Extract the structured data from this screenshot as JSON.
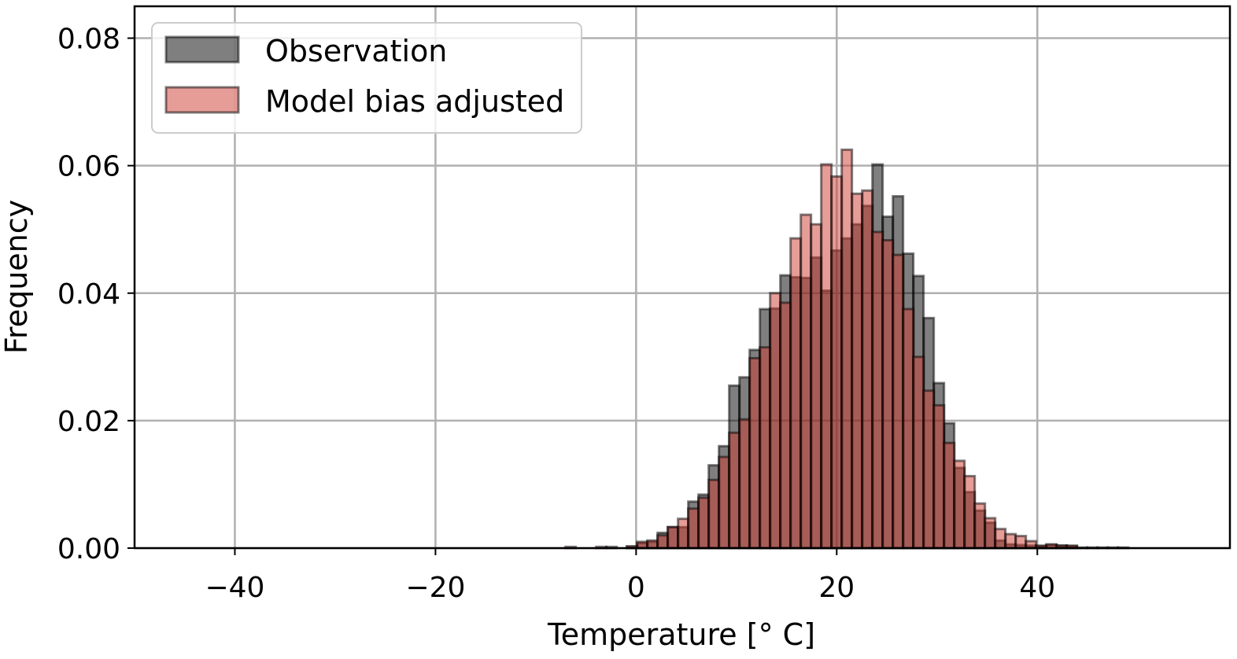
{
  "chart_data": {
    "type": "bar",
    "subtype": "overlapping-histogram",
    "title": "",
    "xlabel": "Temperature [° C]",
    "ylabel": "Frequency",
    "xlim": [
      -50,
      59.2
    ],
    "ylim": [
      0,
      0.085
    ],
    "xticks": [
      -40,
      -20,
      0,
      20,
      40
    ],
    "xtick_labels": [
      "−40",
      "−20",
      "0",
      "20",
      "40"
    ],
    "yticks": [
      0,
      0.02,
      0.04,
      0.06,
      0.08
    ],
    "ytick_labels": [
      "0.00",
      "0.02",
      "0.04",
      "0.06",
      "0.08"
    ],
    "grid": true,
    "legend_position": "top-left",
    "bin_start": 0.1,
    "bin_width": 1.02,
    "series": [
      {
        "name": "Observation",
        "color": "#000000",
        "opacity": 0.5,
        "bins": {
          "-1": 0.0002,
          "0": 0.0008,
          "1": 0.001,
          "2": 0.0024,
          "3": 0.0033,
          "4": 0.0033,
          "5": 0.0073,
          "6": 0.0084,
          "7": 0.013,
          "8": 0.016,
          "9": 0.0255,
          "10": 0.0268,
          "11": 0.0311,
          "12": 0.0375,
          "13": 0.0376,
          "14": 0.0428,
          "15": 0.0425,
          "16": 0.0424,
          "17": 0.0456,
          "18": 0.0404,
          "19": 0.0467,
          "20": 0.0486,
          "21": 0.0508,
          "22": 0.0537,
          "23": 0.0602,
          "24": 0.052,
          "25": 0.0552,
          "26": 0.0462,
          "27": 0.0427,
          "28": 0.0361,
          "29": 0.0259,
          "30": 0.0196,
          "31": 0.0126,
          "32": 0.0088,
          "33": 0.0059,
          "34": 0.004,
          "35": 0.0012,
          "36": 0.0006,
          "37": 0.0005,
          "38": 0.0004,
          "39": 0.0003,
          "40": 0.0005,
          "41": 0.0004,
          "42": 0.0003
        }
      },
      {
        "name": "Model bias adjusted",
        "color": "#cd3c32",
        "opacity": 0.5,
        "bins": {
          "-7": 0.0002,
          "-4": 0.0002,
          "-3": 0.0002,
          "-1": 0.0003,
          "0": 0.001,
          "1": 0.0012,
          "2": 0.002,
          "3": 0.0033,
          "4": 0.0046,
          "5": 0.0062,
          "6": 0.0079,
          "7": 0.0107,
          "8": 0.0143,
          "9": 0.0181,
          "10": 0.0202,
          "11": 0.0298,
          "12": 0.0315,
          "13": 0.04,
          "14": 0.0385,
          "15": 0.0486,
          "16": 0.0523,
          "17": 0.0508,
          "18": 0.0602,
          "19": 0.0583,
          "20": 0.0625,
          "21": 0.0556,
          "22": 0.0561,
          "23": 0.0496,
          "24": 0.0483,
          "25": 0.046,
          "26": 0.0375,
          "27": 0.03,
          "28": 0.0247,
          "29": 0.0224,
          "30": 0.0165,
          "31": 0.0137,
          "32": 0.0113,
          "33": 0.007,
          "34": 0.0047,
          "35": 0.003,
          "36": 0.0022,
          "37": 0.0019,
          "38": 0.0011,
          "39": 0.0004,
          "40": 0.0006,
          "41": 0.0004,
          "42": 0.0004,
          "43": 0.0001,
          "44": 0.0001,
          "45": 0.0001,
          "46": 0.0001,
          "47": 0.0001
        }
      }
    ]
  }
}
